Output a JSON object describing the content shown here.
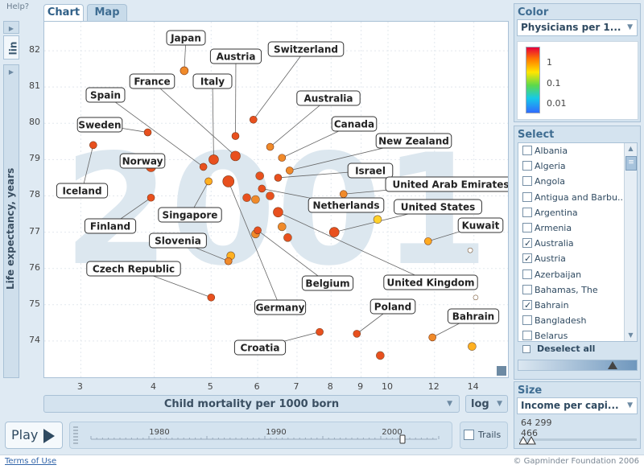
{
  "help": "Help?",
  "tabs": {
    "chart": "Chart",
    "map": "Map"
  },
  "y_axis": {
    "label": "Life expectancy, years",
    "scale": "lin"
  },
  "x_axis": {
    "label": "Child mortality per 1000 born",
    "scale": "log"
  },
  "play": {
    "label": "Play",
    "trails_label": "Trails",
    "year_ticks": [
      "1980",
      "1990",
      "2000"
    ],
    "current_year": 2001
  },
  "footer": {
    "terms": "Terms of Use",
    "copyright": "© Gapminder Foundation 2006"
  },
  "color_panel": {
    "title": "Color",
    "indicator": "Physicians per 1...",
    "legend_ticks": [
      "1",
      "0.1",
      "0.01"
    ]
  },
  "select_panel": {
    "title": "Select",
    "items": [
      {
        "label": "Albania",
        "checked": false
      },
      {
        "label": "Algeria",
        "checked": false
      },
      {
        "label": "Angola",
        "checked": false
      },
      {
        "label": "Antigua and Barbu...",
        "checked": false
      },
      {
        "label": "Argentina",
        "checked": false
      },
      {
        "label": "Armenia",
        "checked": false
      },
      {
        "label": "Australia",
        "checked": true
      },
      {
        "label": "Austria",
        "checked": true
      },
      {
        "label": "Azerbaijan",
        "checked": false
      },
      {
        "label": "Bahamas, The",
        "checked": false
      },
      {
        "label": "Bahrain",
        "checked": true
      },
      {
        "label": "Bangladesh",
        "checked": false
      },
      {
        "label": "Belarus",
        "checked": false
      }
    ],
    "deselect_label": "Deselect all"
  },
  "size_panel": {
    "title": "Size",
    "indicator": "Income per capi...",
    "max": "64 299",
    "min": "466"
  },
  "chart_data": {
    "type": "scatter",
    "title": "",
    "watermark": "2001",
    "xlabel": "Child mortality per 1000 born",
    "ylabel": "Life expectancy, years",
    "xscale": "log",
    "xlim": [
      2.6,
      16
    ],
    "ylim": [
      73,
      82.8
    ],
    "xticks": [
      3,
      4,
      5,
      6,
      7,
      8,
      9,
      10,
      12,
      14
    ],
    "yticks": [
      74,
      75,
      76,
      77,
      78,
      79,
      80,
      81,
      82
    ],
    "grid": true,
    "labeled_points": [
      {
        "name": "Japan",
        "x": 4.5,
        "y": 81.45,
        "color": "#f08a2a"
      },
      {
        "name": "Switzerland",
        "x": 5.9,
        "y": 80.1,
        "color": "#e8501e"
      },
      {
        "name": "Austria",
        "x": 5.5,
        "y": 79.65,
        "color": "#e8501e"
      },
      {
        "name": "France",
        "x": 5.5,
        "y": 79.1,
        "color": "#e8501e"
      },
      {
        "name": "Italy",
        "x": 5.05,
        "y": 79.0,
        "color": "#e8501e"
      },
      {
        "name": "Spain",
        "x": 4.85,
        "y": 78.8,
        "color": "#e8501e"
      },
      {
        "name": "Australia",
        "x": 6.3,
        "y": 79.35,
        "color": "#f08a2a"
      },
      {
        "name": "Canada",
        "x": 6.6,
        "y": 79.05,
        "color": "#f08a2a"
      },
      {
        "name": "Sweden",
        "x": 3.9,
        "y": 79.75,
        "color": "#e8501e"
      },
      {
        "name": "Norway",
        "x": 3.95,
        "y": 78.8,
        "color": "#e8501e"
      },
      {
        "name": "Iceland",
        "x": 3.15,
        "y": 79.4,
        "color": "#e8501e"
      },
      {
        "name": "New Zealand",
        "x": 6.8,
        "y": 78.7,
        "color": "#f08a2a"
      },
      {
        "name": "Israel",
        "x": 6.5,
        "y": 78.5,
        "color": "#e8501e"
      },
      {
        "name": "United Arab Emirates",
        "x": 8.4,
        "y": 78.05,
        "color": "#f08a2a"
      },
      {
        "name": "Netherlands",
        "x": 6.1,
        "y": 78.2,
        "color": "#e8501e"
      },
      {
        "name": "Finland",
        "x": 3.95,
        "y": 77.95,
        "color": "#e8501e"
      },
      {
        "name": "Singapore",
        "x": 4.95,
        "y": 78.4,
        "color": "#ffb020"
      },
      {
        "name": "United States",
        "x": 8.1,
        "y": 77.0,
        "color": "#e8501e"
      },
      {
        "name": "Kuwait",
        "x": 11.7,
        "y": 76.75,
        "color": "#ffaa20"
      },
      {
        "name": "Slovenia",
        "x": 5.35,
        "y": 76.2,
        "color": "#f08a2a"
      },
      {
        "name": "Czech Republic",
        "x": 5.0,
        "y": 75.2,
        "color": "#e8501e"
      },
      {
        "name": "Belgium",
        "x": 6.0,
        "y": 77.05,
        "color": "#e8501e"
      },
      {
        "name": "United Kingdom",
        "x": 6.5,
        "y": 77.55,
        "color": "#e8501e"
      },
      {
        "name": "Germany",
        "x": 5.35,
        "y": 78.4,
        "color": "#e8501e"
      },
      {
        "name": "Poland",
        "x": 8.85,
        "y": 74.2,
        "color": "#e8501e"
      },
      {
        "name": "Bahrain",
        "x": 11.9,
        "y": 74.1,
        "color": "#f08a2a"
      },
      {
        "name": "Croatia",
        "x": 7.65,
        "y": 74.25,
        "color": "#e8501e"
      }
    ],
    "other_points": [
      {
        "x": 5.4,
        "y": 76.35,
        "color": "#ffb020"
      },
      {
        "x": 5.75,
        "y": 77.95,
        "color": "#e8501e"
      },
      {
        "x": 5.95,
        "y": 77.9,
        "color": "#f08a2a"
      },
      {
        "x": 6.05,
        "y": 78.55,
        "color": "#e8501e"
      },
      {
        "x": 6.3,
        "y": 78.0,
        "color": "#e8501e"
      },
      {
        "x": 5.95,
        "y": 76.95,
        "color": "#f08a2a"
      },
      {
        "x": 6.6,
        "y": 77.15,
        "color": "#f08a2a"
      },
      {
        "x": 6.75,
        "y": 76.85,
        "color": "#e8501e"
      },
      {
        "x": 9.6,
        "y": 77.35,
        "color": "#ffd12a"
      },
      {
        "x": 9.7,
        "y": 73.6,
        "color": "#e8501e"
      },
      {
        "x": 13.9,
        "y": 73.85,
        "color": "#ffb020"
      },
      {
        "x": 13.8,
        "y": 76.5,
        "color": "#ffffff"
      },
      {
        "x": 14.1,
        "y": 75.2,
        "color": "#ffffff"
      }
    ]
  }
}
